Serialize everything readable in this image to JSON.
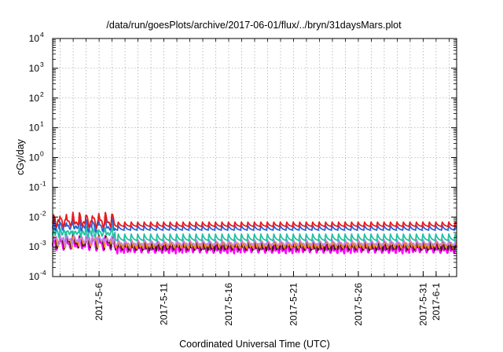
{
  "chart_data": {
    "type": "line",
    "title": "/data/run/goesPlots/archive/2017-06-01/flux/../bryn/31daysMars.plot",
    "xlabel": "Coordinated Universal Time (UTC)",
    "ylabel": "cGy/day",
    "yscale": "log",
    "ylim": [
      0.0001,
      10000
    ],
    "xlim": [
      "2017-05-02T10:00",
      "2017-06-02T14:00"
    ],
    "ytick_labels": [
      {
        "base": "10",
        "exp": "-4",
        "value": 0.0001
      },
      {
        "base": "10",
        "exp": "-3",
        "value": 0.001
      },
      {
        "base": "10",
        "exp": "-2",
        "value": 0.01
      },
      {
        "base": "10",
        "exp": "-1",
        "value": 0.1
      },
      {
        "base": "10",
        "exp": "0",
        "value": 1
      },
      {
        "base": "10",
        "exp": "1",
        "value": 10
      },
      {
        "base": "10",
        "exp": "2",
        "value": 100
      },
      {
        "base": "10",
        "exp": "3",
        "value": 1000
      },
      {
        "base": "10",
        "exp": "4",
        "value": 10000
      }
    ],
    "xtick_labels": [
      {
        "label": "2017-5-6",
        "date": "2017-05-06"
      },
      {
        "label": "2017-5-11",
        "date": "2017-05-11"
      },
      {
        "label": "2017-5-16",
        "date": "2017-05-16"
      },
      {
        "label": "2017-5-21",
        "date": "2017-05-21"
      },
      {
        "label": "2017-5-26",
        "date": "2017-05-26"
      },
      {
        "label": "2017-5-31",
        "date": "2017-05-31"
      },
      {
        "label": "2017-6-1",
        "date": "2017-06-01"
      }
    ],
    "grid": true,
    "legend": "none",
    "period_days": 0.5,
    "series": [
      {
        "color": "#e8191b",
        "start_peak": 0.011,
        "baseline_peak": 0.0068,
        "trough": 0.0048,
        "width": 1.8
      },
      {
        "color": "#2f5fd6",
        "start_peak": 0.0075,
        "baseline_peak": 0.0052,
        "trough": 0.0036,
        "width": 1.8
      },
      {
        "color": "#1fc2a1",
        "start_peak": 0.0045,
        "baseline_peak": 0.0027,
        "trough": 0.0016,
        "width": 1.8
      },
      {
        "color": "#c080ff",
        "start_peak": 0.0026,
        "baseline_peak": 0.0018,
        "trough": 0.00115,
        "width": 1.5
      },
      {
        "color": "#ff8a1a",
        "start_peak": 0.0024,
        "baseline_peak": 0.0016,
        "trough": 0.00105,
        "width": 1.5
      },
      {
        "color": "#3a1e12",
        "start_peak": 0.0022,
        "baseline_peak": 0.0014,
        "trough": 0.00088,
        "width": 1.6
      },
      {
        "color": "#ff00ff",
        "start_peak": 0.0019,
        "baseline_peak": 0.0012,
        "trough": 0.00072,
        "width": 2.2
      }
    ]
  }
}
